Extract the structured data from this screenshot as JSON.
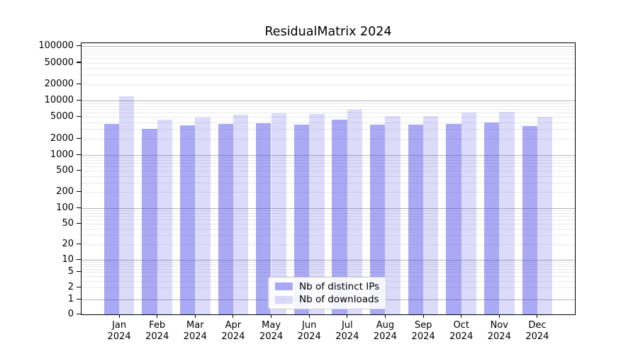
{
  "title": "ResidualMatrix 2024",
  "colors": {
    "bar_dark": "rgba(70,70,230,0.46)",
    "bar_light": "rgba(70,70,230,0.19)",
    "grid_major": "#b3b3b3",
    "grid_minor": "#e9e9e9",
    "spine": "#000000",
    "background": "#ffffff"
  },
  "chart_data": {
    "type": "bar",
    "title": "ResidualMatrix 2024",
    "categories": [
      "Jan 2024",
      "Feb 2024",
      "Mar 2024",
      "Apr 2024",
      "May 2024",
      "Jun 2024",
      "Jul 2024",
      "Aug 2024",
      "Sep 2024",
      "Oct 2024",
      "Nov 2024",
      "Dec 2024"
    ],
    "series": [
      {
        "name": "Nb of distinct IPs",
        "values": [
          3750,
          3000,
          3500,
          3670,
          3870,
          3600,
          4500,
          3600,
          3600,
          3750,
          3930,
          3400
        ]
      },
      {
        "name": "Nb of downloads",
        "values": [
          11900,
          4400,
          4860,
          5480,
          5890,
          5650,
          6700,
          5200,
          5250,
          6100,
          6200,
          5100
        ]
      }
    ],
    "xlabel": "",
    "ylabel": "",
    "yscale": "symlog",
    "yticks": [
      0,
      1,
      2,
      5,
      10,
      20,
      50,
      100,
      200,
      500,
      1000,
      2000,
      5000,
      10000,
      20000,
      50000,
      100000
    ],
    "ylim": [
      0,
      100000
    ],
    "grid": true,
    "legend_position": "lower center"
  }
}
